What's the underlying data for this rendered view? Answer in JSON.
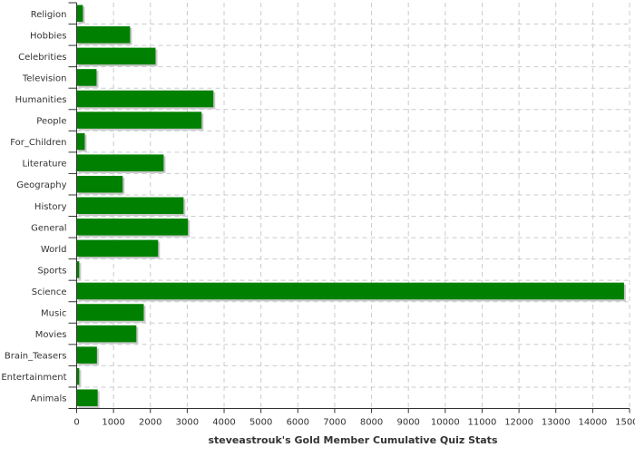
{
  "chart_data": {
    "type": "bar",
    "orientation": "horizontal",
    "title": "",
    "xlabel": "steveastrouk's Gold Member Cumulative Quiz Stats",
    "ylabel": "",
    "categories": [
      "Religion",
      "Hobbies",
      "Celebrities",
      "Television",
      "Humanities",
      "People",
      "For_Children",
      "Literature",
      "Geography",
      "History",
      "General",
      "World",
      "Sports",
      "Science",
      "Music",
      "Movies",
      "Brain_Teasers",
      "Entertainment",
      "Animals"
    ],
    "values": [
      170,
      1450,
      2140,
      540,
      3710,
      3390,
      220,
      2360,
      1250,
      2900,
      3020,
      2210,
      70,
      14850,
      1820,
      1620,
      550,
      70,
      570
    ],
    "xlim": [
      0,
      15000
    ],
    "xticks": [
      0,
      1000,
      2000,
      3000,
      4000,
      5000,
      6000,
      7000,
      8000,
      9000,
      10000,
      11000,
      12000,
      13000,
      14000,
      15000
    ],
    "grid": true,
    "legend": "none",
    "bar_color": "#008000",
    "shadow_color": "#c8c8c8"
  }
}
